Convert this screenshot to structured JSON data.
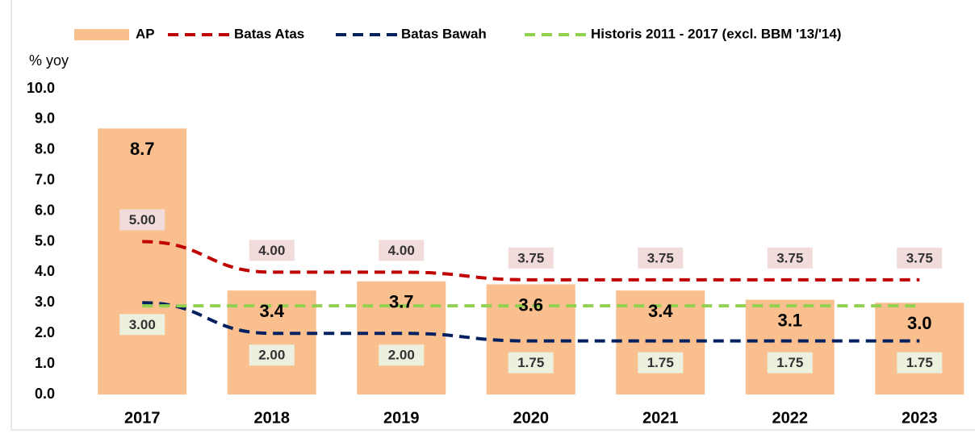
{
  "chart_data": {
    "type": "bar",
    "y_label": "% yoy",
    "categories": [
      "2017",
      "2018",
      "2019",
      "2020",
      "2021",
      "2022",
      "2023"
    ],
    "series": [
      {
        "name": "AP",
        "type": "bar",
        "color": "#f9bf8f",
        "values": [
          8.7,
          3.4,
          3.7,
          3.6,
          3.4,
          3.1,
          3.0
        ],
        "value_labels": [
          "8.7",
          "3.4",
          "3.7",
          "3.6",
          "3.4",
          "3.1",
          "3.0"
        ]
      },
      {
        "name": "Batas Atas",
        "type": "line",
        "color": "#c00000",
        "label_fill": "#f2dcdb",
        "values": [
          5.0,
          4.0,
          4.0,
          3.75,
          3.75,
          3.75,
          3.75
        ],
        "value_labels": [
          "5.00",
          "4.00",
          "4.00",
          "3.75",
          "3.75",
          "3.75",
          "3.75"
        ]
      },
      {
        "name": "Batas Bawah",
        "type": "line",
        "color": "#002060",
        "label_fill": "#ebf1de",
        "values": [
          3.0,
          2.0,
          2.0,
          1.75,
          1.75,
          1.75,
          1.75
        ],
        "value_labels": [
          "3.00",
          "2.00",
          "2.00",
          "1.75",
          "1.75",
          "1.75",
          "1.75"
        ]
      },
      {
        "name": "Historis 2011 - 2017 (excl. BBM '13/'14)",
        "type": "line",
        "color": "#92d050",
        "values": [
          2.9,
          2.9,
          2.9,
          2.9,
          2.9,
          2.9,
          2.9
        ]
      }
    ],
    "ylim": [
      0,
      10
    ],
    "yticks": [
      {
        "value": 0,
        "label": "0.0"
      },
      {
        "value": 1,
        "label": "1.0"
      },
      {
        "value": 2,
        "label": "2.0"
      },
      {
        "value": 3,
        "label": "3.0"
      },
      {
        "value": 4,
        "label": "4.0"
      },
      {
        "value": 5,
        "label": "5.0"
      },
      {
        "value": 6,
        "label": "6.0"
      },
      {
        "value": 7,
        "label": "7.0"
      },
      {
        "value": 8,
        "label": "8.0"
      },
      {
        "value": 9,
        "label": "9.0"
      },
      {
        "value": 10,
        "label": "10.0"
      }
    ],
    "grid": false
  }
}
